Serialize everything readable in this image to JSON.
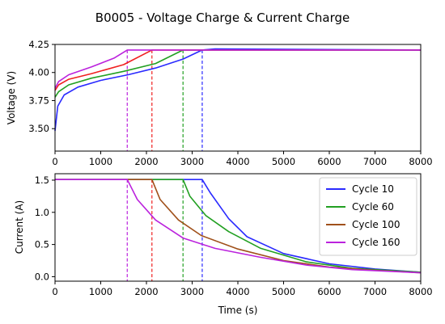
{
  "chart_data": {
    "title": "B0005 - Voltage Charge & Current Charge",
    "type": "line",
    "subplots": [
      {
        "id": "voltage",
        "ylabel": "Voltage (V)",
        "xlabel": "",
        "xlim": [
          0,
          8000
        ],
        "ylim": [
          3.3,
          4.25
        ],
        "yticks": [
          3.5,
          3.75,
          4.0,
          4.25
        ],
        "ytick_labels": [
          "3.50",
          "3.75",
          "4.00",
          "4.25"
        ],
        "xticks": [
          0,
          1000,
          2000,
          3000,
          4000,
          5000,
          6000,
          7000,
          8000
        ],
        "xtick_labels": [
          "0",
          "1000",
          "2000",
          "3000",
          "4000",
          "5000",
          "6000",
          "7000",
          "8000"
        ],
        "grid": false,
        "legend": false
      },
      {
        "id": "current",
        "ylabel": "Current (A)",
        "xlabel": "Time (s)",
        "xlim": [
          0,
          8000
        ],
        "ylim": [
          -0.07,
          1.6
        ],
        "yticks": [
          0.0,
          0.5,
          1.0,
          1.5
        ],
        "ytick_labels": [
          "0.0",
          "0.5",
          "1.0",
          "1.5"
        ],
        "xticks": [
          0,
          1000,
          2000,
          3000,
          4000,
          5000,
          6000,
          7000,
          8000
        ],
        "xtick_labels": [
          "0",
          "1000",
          "2000",
          "3000",
          "4000",
          "5000",
          "6000",
          "7000",
          "8000"
        ],
        "grid": false,
        "legend": "top-right"
      }
    ],
    "series": [
      {
        "name": "Cycle 10",
        "color": "#2a2aff",
        "cv_start": 3220,
        "voltage": [
          [
            0,
            3.48
          ],
          [
            60,
            3.7
          ],
          [
            200,
            3.8
          ],
          [
            500,
            3.87
          ],
          [
            1000,
            3.93
          ],
          [
            1600,
            3.98
          ],
          [
            2200,
            4.04
          ],
          [
            2800,
            4.12
          ],
          [
            3220,
            4.2
          ],
          [
            3500,
            4.21
          ],
          [
            8000,
            4.2
          ]
        ],
        "current": [
          [
            0,
            1.51
          ],
          [
            3220,
            1.51
          ],
          [
            3400,
            1.3
          ],
          [
            3800,
            0.9
          ],
          [
            4200,
            0.62
          ],
          [
            5000,
            0.36
          ],
          [
            6000,
            0.2
          ],
          [
            7000,
            0.12
          ],
          [
            8000,
            0.07
          ]
        ]
      },
      {
        "name": "Cycle 60",
        "color": "#22a022",
        "cv_start": 2800,
        "voltage": [
          [
            0,
            3.78
          ],
          [
            80,
            3.83
          ],
          [
            300,
            3.89
          ],
          [
            800,
            3.95
          ],
          [
            1500,
            4.01
          ],
          [
            2200,
            4.08
          ],
          [
            2800,
            4.2
          ],
          [
            8000,
            4.2
          ]
        ],
        "current": [
          [
            0,
            1.51
          ],
          [
            2800,
            1.51
          ],
          [
            2950,
            1.25
          ],
          [
            3300,
            0.95
          ],
          [
            3800,
            0.7
          ],
          [
            4500,
            0.44
          ],
          [
            5500,
            0.23
          ],
          [
            6500,
            0.13
          ],
          [
            8000,
            0.07
          ]
        ]
      },
      {
        "name": "Cycle 100",
        "color": "#f02020",
        "cv_start": 2120,
        "voltage": [
          [
            0,
            3.84
          ],
          [
            80,
            3.89
          ],
          [
            300,
            3.94
          ],
          [
            800,
            3.99
          ],
          [
            1500,
            4.07
          ],
          [
            2120,
            4.2
          ],
          [
            8000,
            4.2
          ]
        ],
        "current": [
          [
            0,
            1.51
          ],
          [
            2120,
            1.51
          ],
          [
            2300,
            1.2
          ],
          [
            2700,
            0.88
          ],
          [
            3200,
            0.64
          ],
          [
            4000,
            0.43
          ],
          [
            5000,
            0.25
          ],
          [
            6000,
            0.15
          ],
          [
            7000,
            0.1
          ],
          [
            8000,
            0.06
          ]
        ]
      },
      {
        "name": "Cycle 160",
        "color": "#bb22dd",
        "cv_start": 1580,
        "voltage": [
          [
            0,
            3.86
          ],
          [
            80,
            3.92
          ],
          [
            300,
            3.98
          ],
          [
            800,
            4.05
          ],
          [
            1300,
            4.13
          ],
          [
            1580,
            4.2
          ],
          [
            8000,
            4.2
          ]
        ],
        "current": [
          [
            0,
            1.51
          ],
          [
            1580,
            1.51
          ],
          [
            1800,
            1.2
          ],
          [
            2200,
            0.88
          ],
          [
            2800,
            0.6
          ],
          [
            3500,
            0.44
          ],
          [
            4500,
            0.3
          ],
          [
            5500,
            0.18
          ],
          [
            6500,
            0.11
          ],
          [
            8000,
            0.06
          ]
        ]
      }
    ],
    "current_legend_colors": [
      "#2a2aff",
      "#22a022",
      "#a0501a",
      "#bb22dd"
    ]
  }
}
